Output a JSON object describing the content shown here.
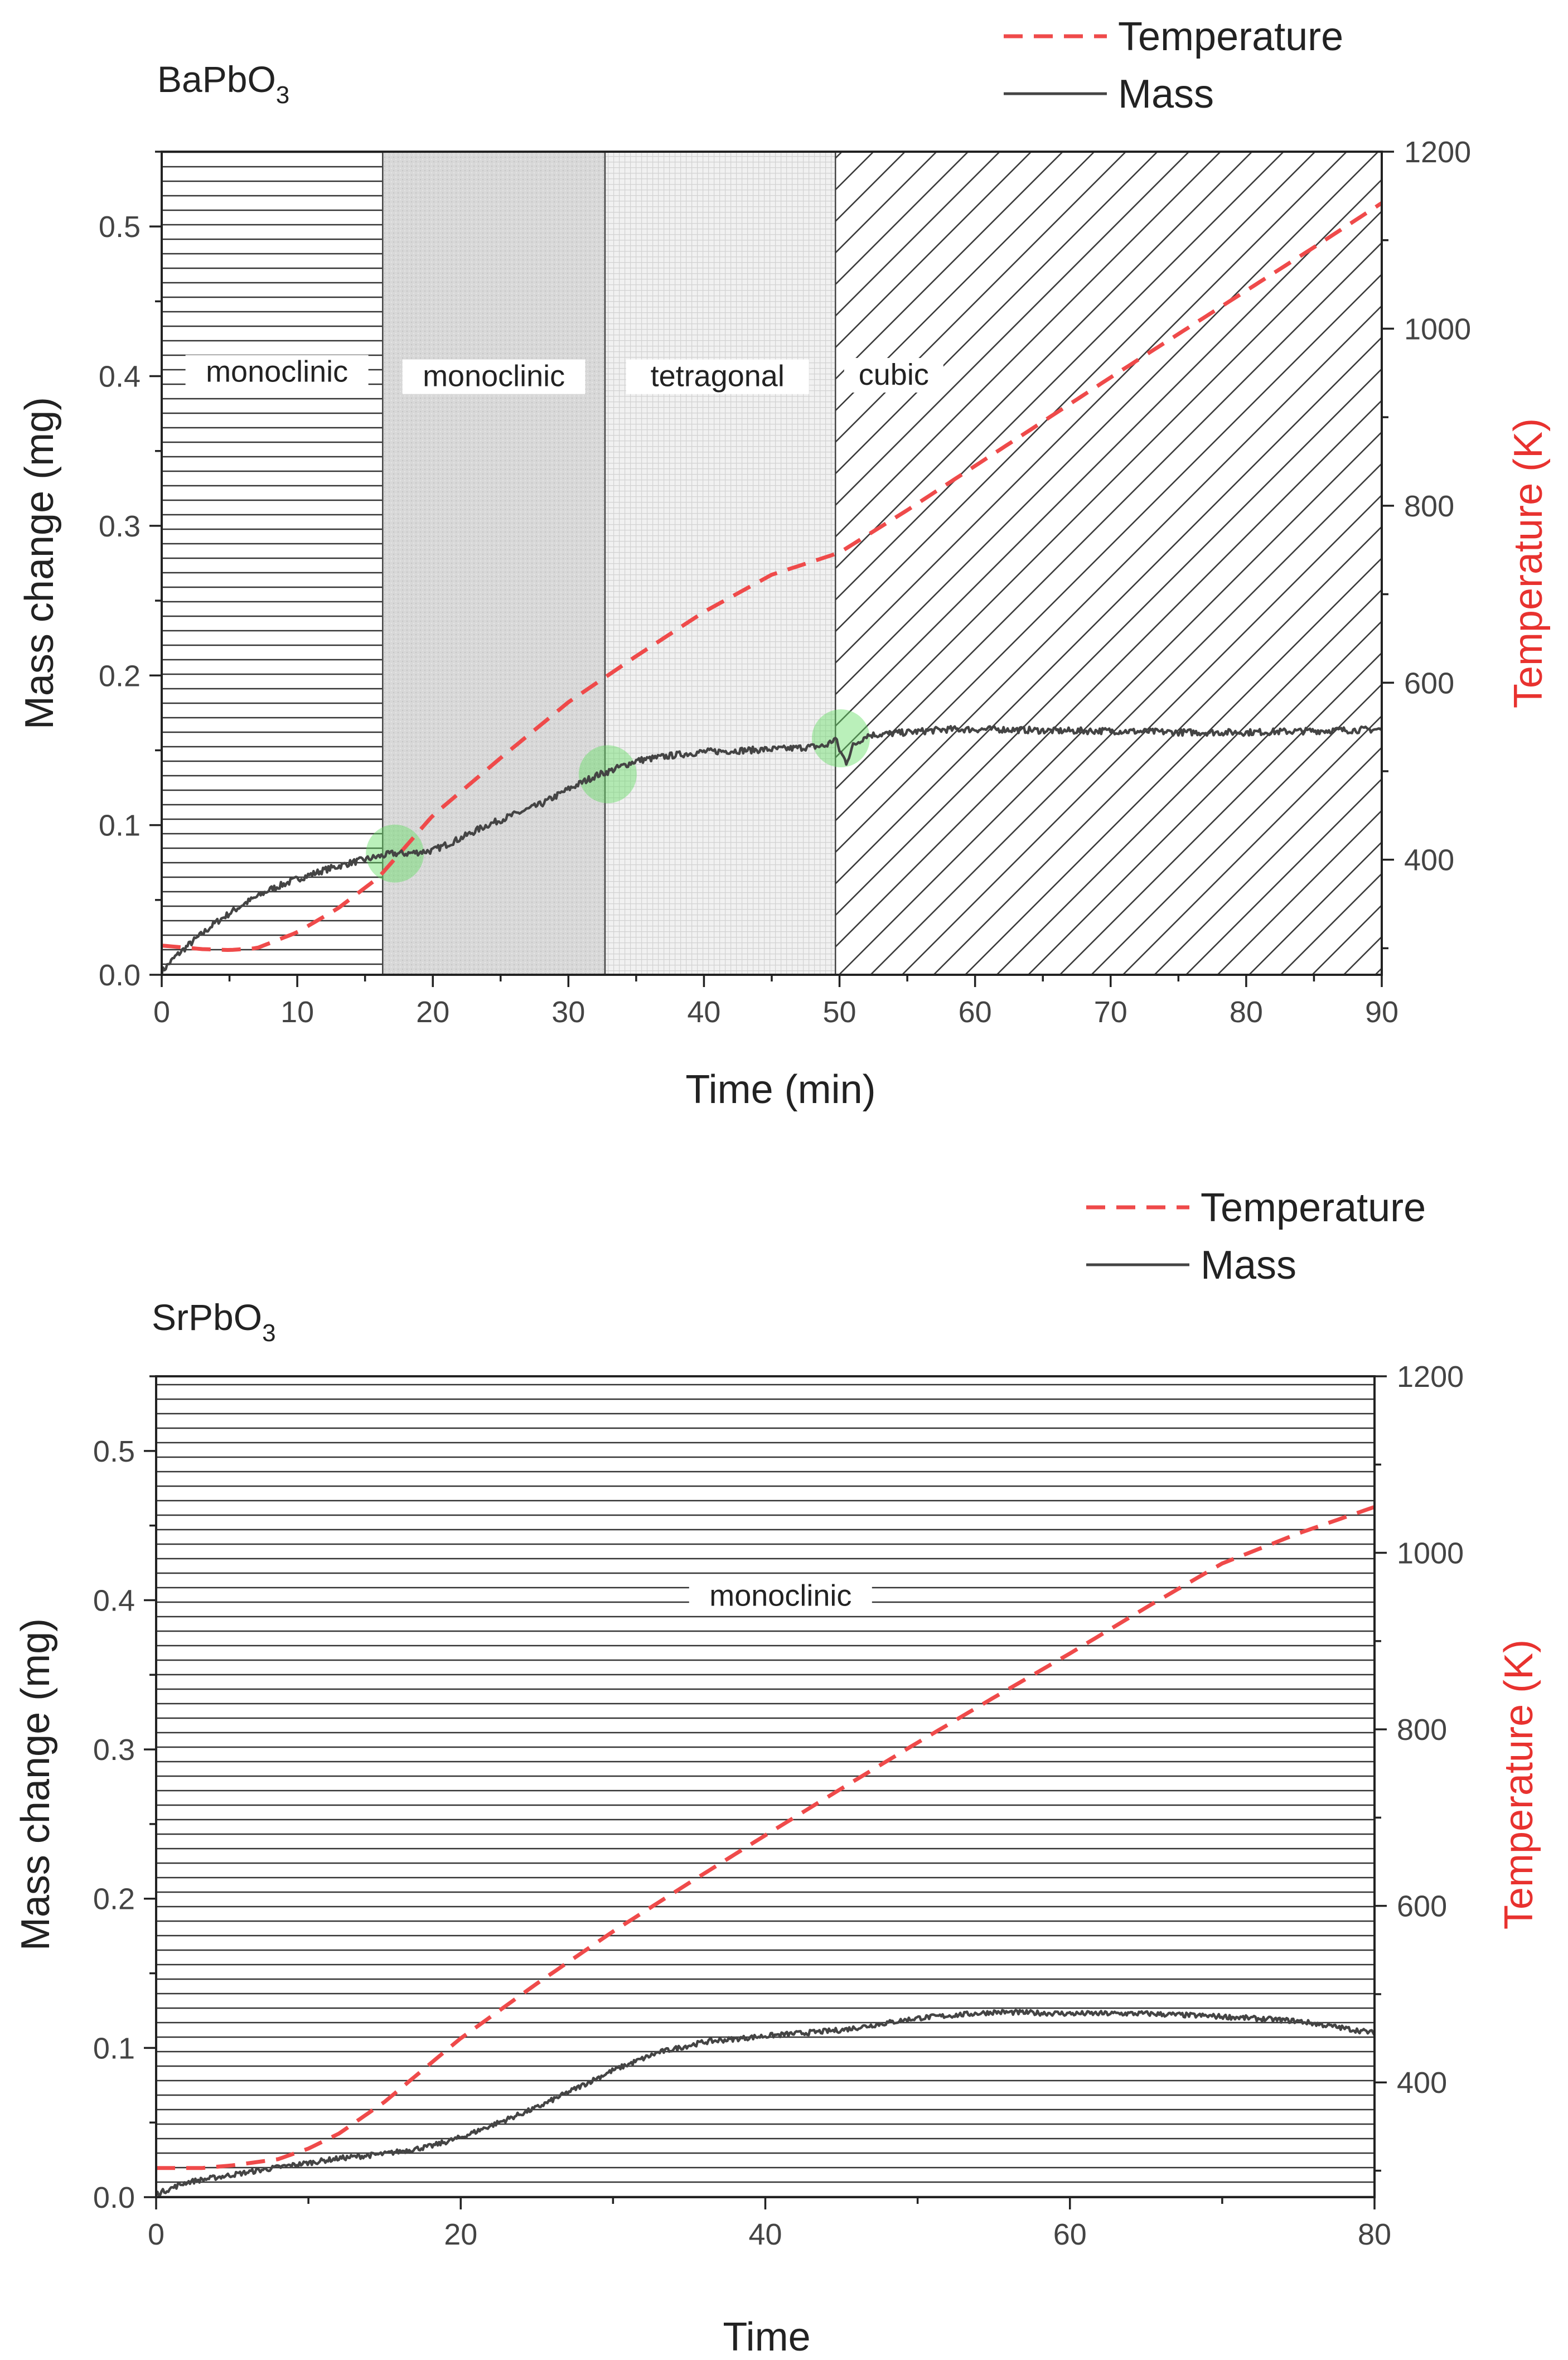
{
  "colors": {
    "temperature": "#ef4a4a",
    "mass": "#444444",
    "transition_marker": "#66dd66",
    "hatch": "#333333",
    "shade": "#dcdcdc",
    "right_axis_label": "#e8322f"
  },
  "chart_data": [
    {
      "type": "line",
      "title": "BaPbO3",
      "title_base": "BaPbO",
      "title_sub": "3",
      "xlabel": "Time (min)",
      "ylabel": "Mass change (mg)",
      "y2label": "Temperature (K)",
      "xlim": [
        0,
        90
      ],
      "ylim": [
        0,
        0.55
      ],
      "y2lim": [
        270,
        1200
      ],
      "xticks": [
        0,
        10,
        20,
        30,
        40,
        50,
        60,
        70,
        80,
        90
      ],
      "xtick_labels": [
        "0",
        "10",
        "20",
        "30",
        "40",
        "50",
        "60",
        "70",
        "80",
        "90"
      ],
      "yticks": [
        0.0,
        0.1,
        0.2,
        0.3,
        0.4,
        0.5
      ],
      "ytick_labels": [
        "0.0",
        "0.1",
        "0.2",
        "0.3",
        "0.4",
        "0.5"
      ],
      "y2ticks": [
        400,
        600,
        800,
        1000,
        1200
      ],
      "y2tick_labels": [
        "400",
        "600",
        "800",
        "1000",
        "1200"
      ],
      "legend": {
        "position": "top-right",
        "entries": [
          "Temperature",
          "Mass"
        ]
      },
      "regions": [
        {
          "label": "monoclinic",
          "x": [
            0,
            16.3
          ],
          "pattern": "horizontal",
          "label_x": 8.5,
          "label_y": 0.4
        },
        {
          "label": "monoclinic",
          "x": [
            16.3,
            32.7
          ],
          "pattern": "shaded",
          "label_x": 24.5,
          "label_y": 0.397
        },
        {
          "label": "tetragonal",
          "x": [
            32.7,
            49.7
          ],
          "pattern": "dotted",
          "label_x": 41,
          "label_y": 0.397
        },
        {
          "label": "cubic",
          "x": [
            49.7,
            90
          ],
          "pattern": "diagonal",
          "label_x": 54,
          "label_y": 0.398
        }
      ],
      "transition_markers": [
        {
          "x": 17.2,
          "y": 0.081
        },
        {
          "x": 32.9,
          "y": 0.134
        },
        {
          "x": 50.1,
          "y": 0.158
        }
      ],
      "series": [
        {
          "name": "Temperature",
          "axis": "right",
          "style": "dashed",
          "x": [
            0,
            3,
            5,
            7,
            10,
            13,
            16,
            20,
            25,
            30,
            35,
            40,
            45,
            50,
            55,
            60,
            65,
            70,
            75,
            80,
            85,
            90
          ],
          "y": [
            303,
            299,
            298,
            300,
            318,
            345,
            380,
            450,
            515,
            578,
            630,
            680,
            722,
            747,
            795,
            845,
            895,
            945,
            994,
            1043,
            1092,
            1142
          ]
        },
        {
          "name": "Mass",
          "axis": "left",
          "style": "solid",
          "noise": 0.0022,
          "x": [
            0,
            1,
            2,
            4,
            6,
            8,
            10,
            12,
            14,
            16,
            17,
            18,
            20,
            22,
            24,
            26,
            28,
            30,
            32,
            33,
            35,
            38,
            40,
            43,
            46,
            49,
            49.7,
            50,
            50.5,
            51,
            52,
            55,
            58,
            62,
            66,
            70,
            75,
            80,
            85,
            90
          ],
          "y": [
            0.002,
            0.012,
            0.02,
            0.035,
            0.047,
            0.057,
            0.064,
            0.07,
            0.075,
            0.079,
            0.081,
            0.081,
            0.083,
            0.091,
            0.1,
            0.107,
            0.114,
            0.124,
            0.133,
            0.136,
            0.143,
            0.147,
            0.149,
            0.15,
            0.151,
            0.153,
            0.158,
            0.15,
            0.142,
            0.153,
            0.16,
            0.162,
            0.164,
            0.164,
            0.163,
            0.163,
            0.162,
            0.162,
            0.163,
            0.164
          ]
        }
      ]
    },
    {
      "type": "line",
      "title": "SrPbO3",
      "title_base": "SrPbO",
      "title_sub": "3",
      "xlabel": "Time",
      "ylabel": "Mass change (mg)",
      "y2label": "Temperature (K)",
      "xlim": [
        0,
        80
      ],
      "ylim": [
        0,
        0.55
      ],
      "y2lim": [
        270,
        1200
      ],
      "xticks": [
        0,
        20,
        40,
        60,
        80
      ],
      "xtick_labels": [
        "0",
        "20",
        "40",
        "60",
        "80"
      ],
      "yticks": [
        0.0,
        0.1,
        0.2,
        0.3,
        0.4,
        0.5
      ],
      "ytick_labels": [
        "0.0",
        "0.1",
        "0.2",
        "0.3",
        "0.4",
        "0.5"
      ],
      "y2ticks": [
        400,
        600,
        800,
        1000,
        1200
      ],
      "y2tick_labels": [
        "400",
        "600",
        "800",
        "1000",
        "1200"
      ],
      "legend": {
        "position": "top-right",
        "entries": [
          "Temperature",
          "Mass"
        ]
      },
      "regions": [
        {
          "label": "monoclinic",
          "x": [
            0,
            80
          ],
          "pattern": "horizontal",
          "label_x": 41,
          "label_y": 0.4
        }
      ],
      "transition_markers": [],
      "series": [
        {
          "name": "Temperature",
          "axis": "right",
          "style": "dashed",
          "x": [
            0,
            3,
            5,
            8,
            10,
            12,
            15,
            20,
            25,
            30,
            35,
            40,
            45,
            50,
            55,
            60,
            65,
            70,
            75,
            80
          ],
          "y": [
            303,
            303,
            306,
            313,
            325,
            342,
            378,
            450,
            512,
            571,
            626,
            680,
            733,
            785,
            836,
            886,
            938,
            988,
            1022,
            1052
          ]
        },
        {
          "name": "Mass",
          "axis": "left",
          "style": "solid",
          "noise": 0.0017,
          "x": [
            0,
            2,
            5,
            8,
            10,
            12,
            15,
            18,
            20,
            22,
            25,
            28,
            30,
            33,
            36,
            40,
            45,
            50,
            55,
            60,
            65,
            70,
            75,
            80
          ],
          "y": [
            0.002,
            0.01,
            0.015,
            0.02,
            0.023,
            0.026,
            0.029,
            0.034,
            0.04,
            0.048,
            0.06,
            0.075,
            0.085,
            0.097,
            0.104,
            0.108,
            0.112,
            0.12,
            0.124,
            0.123,
            0.123,
            0.121,
            0.118,
            0.11
          ]
        }
      ]
    }
  ]
}
